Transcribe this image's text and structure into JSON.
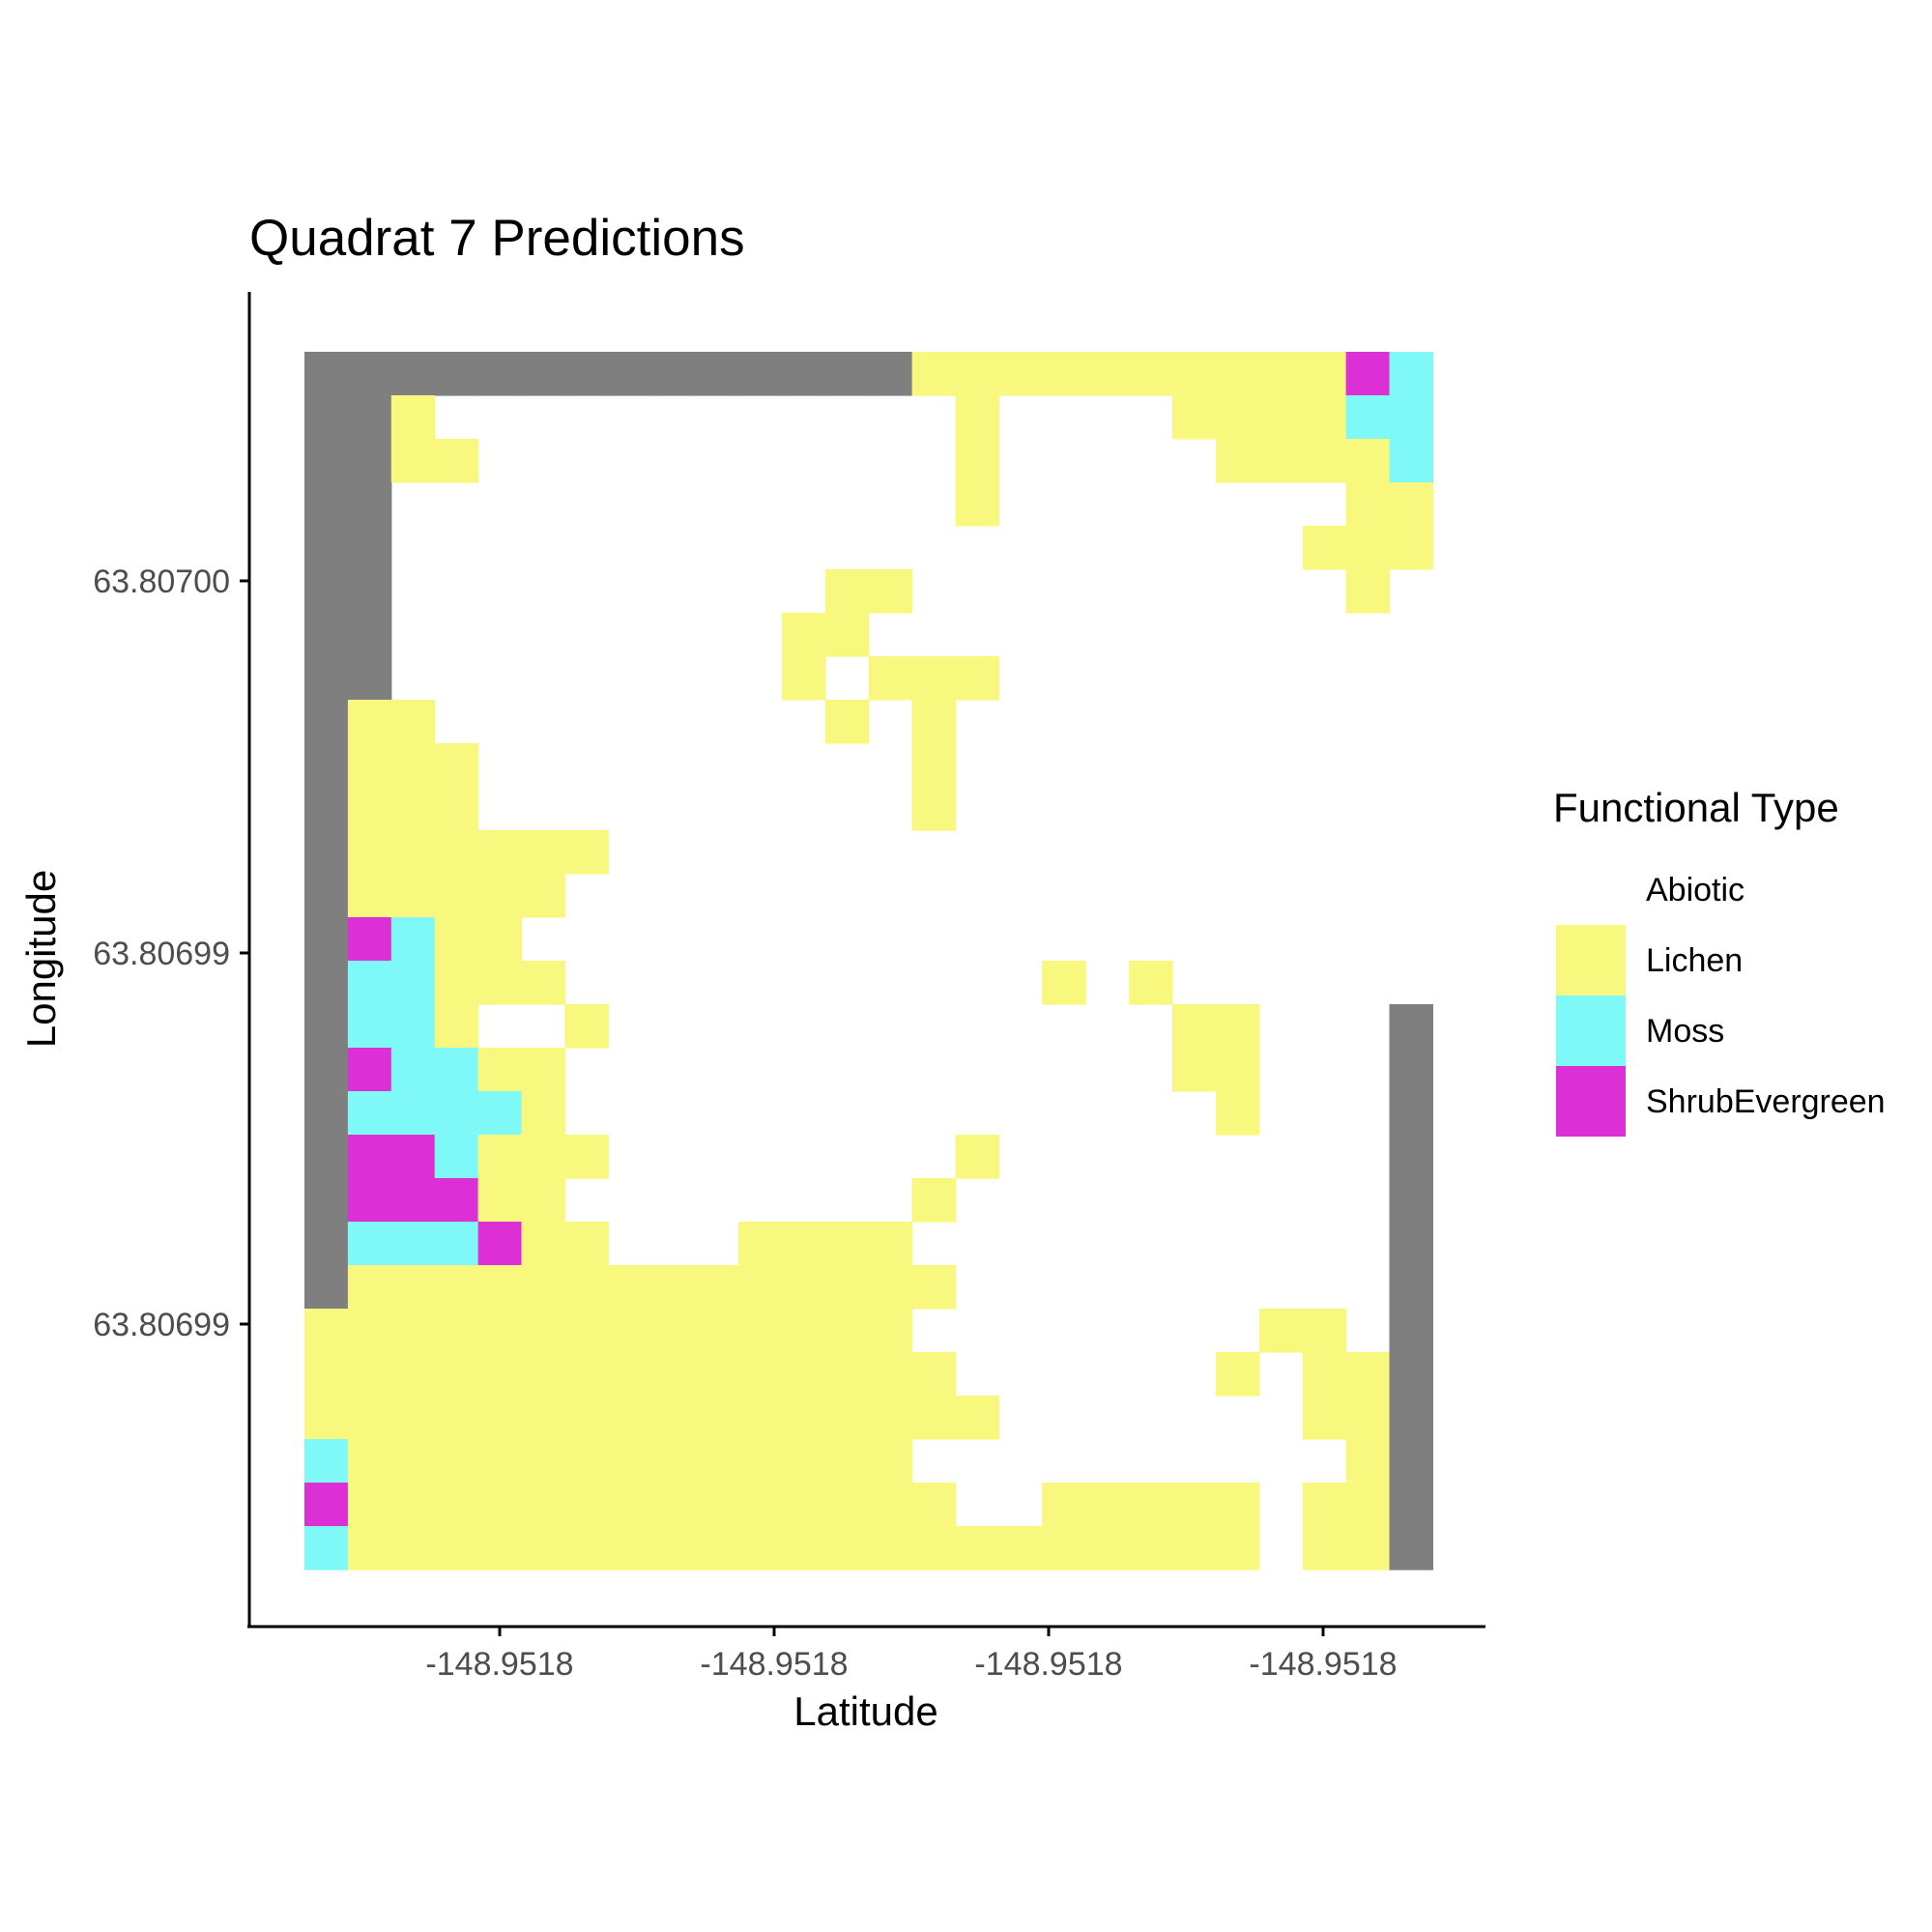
{
  "chart_data": {
    "type": "heatmap",
    "title": "Quadrat 7 Predictions",
    "xlabel": "Latitude",
    "ylabel": "Longitude",
    "x_ticks": [
      "-148.9518",
      "-148.9518",
      "-148.9518",
      "-148.9518"
    ],
    "y_ticks": [
      "63.80700",
      "63.80699",
      "63.80699"
    ],
    "grid": false,
    "legend": {
      "title": "Functional Type",
      "position": "right",
      "entries": [
        {
          "code": "A",
          "label": "Abiotic",
          "color": "#ffffff"
        },
        {
          "code": "L",
          "label": "Lichen",
          "color": "#f8f87f"
        },
        {
          "code": "M",
          "label": "Moss",
          "color": "#7ff8f8"
        },
        {
          "code": "S",
          "label": "ShrubEvergreen",
          "color": "#dc2fd6"
        }
      ]
    },
    "na_color": "#7f7f7f",
    "grid_columns": 26,
    "grid_rows": 28,
    "cells": [
      "NNNNNNNNNNNNNNLLLLLLLLLLSM",
      "NNLAAAAAAAAAAAALAAAALLLLMM",
      "NNLLAAAAAAAAAAALAAAAALLLLM",
      "NNAAAAAAAAAAAAALAAAAAAAALL",
      "NNAAAAAAAAAAAAAAAAAAAAALLL",
      "NNAAAAAAAAAALLAAAAAAAAAALA",
      "NNAAAAAAAAALLAAAAAAAAAAAAA",
      "NNAAAAAAAAALALLLAAAAAAAAAA",
      "NLLAAAAAAAAALALAAAAAAAAAAA",
      "NLLLAAAAAAAAAALAAAAAAAAAAA",
      "NLLLAAAAAAAAAALAAAAAAAAAAA",
      "NLLLLLLAAAAAAAAAAAAAAAAAAA",
      "NLLLLLAAAAAAAAAAAAAAAAAAAA",
      "NSMLLAAAAAAAAAAAAAAAAAAAAA",
      "NMMLLLAAAAAAAAAAALALAAAAAA",
      "NMMLAALAAAAAAAAAAAAALLAAAN",
      "NSMMLLAAAAAAAAAAAAAALLAAAN",
      "NMMMMLAAAAAAAAAAAAAAALAAAN",
      "NSSMLLLAAAAAAAALAAAAAAAAAN",
      "NSSSLLAAAAAAAALAAAAAAAAAAN",
      "NMMMSLLAAALLLLAAAAAAAAAAAN",
      "NLLLLLLLLLLLLLLAAAAAAAAAAN",
      "LLLLLLLLLLLLLLAAAAAAAALLAN",
      "LLLLLLLLLLLLLLLAAAAAALALLN",
      "LLLLLLLLLLLLLLLLAAAAAAALLN",
      "MLLLLLLLLLLLLLAAAAAAAAAALN",
      "SLLLLLLLLLLLLLLAALLLLLALLN",
      "MLLLLLLLLLLLLLLLLLLLLLALLN"
    ]
  }
}
